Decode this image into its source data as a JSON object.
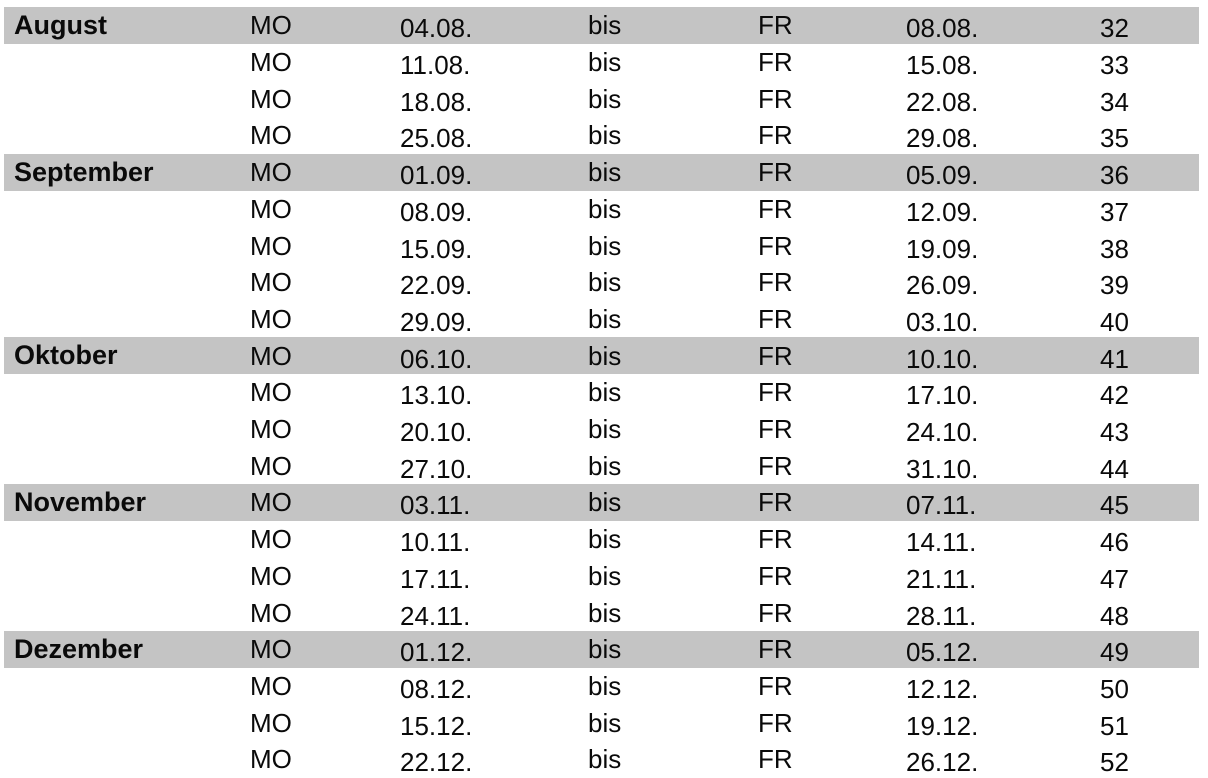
{
  "table": {
    "description_labels": {
      "start_day": "MO",
      "connector": "bis",
      "end_day": "FR"
    },
    "month_row_background": "#c4c4c4",
    "text_color": "#0a0a0a",
    "rows": [
      {
        "month": "August",
        "month_start": true,
        "start_day": "MO",
        "start_date": "04.08.",
        "connector": "bis",
        "end_day": "FR",
        "end_date": "08.08.",
        "week": "32"
      },
      {
        "month": "",
        "month_start": false,
        "start_day": "MO",
        "start_date": "11.08.",
        "connector": "bis",
        "end_day": "FR",
        "end_date": "15.08.",
        "week": "33"
      },
      {
        "month": "",
        "month_start": false,
        "start_day": "MO",
        "start_date": "18.08.",
        "connector": "bis",
        "end_day": "FR",
        "end_date": "22.08.",
        "week": "34"
      },
      {
        "month": "",
        "month_start": false,
        "start_day": "MO",
        "start_date": "25.08.",
        "connector": "bis",
        "end_day": "FR",
        "end_date": "29.08.",
        "week": "35"
      },
      {
        "month": "September",
        "month_start": true,
        "start_day": "MO",
        "start_date": "01.09.",
        "connector": "bis",
        "end_day": "FR",
        "end_date": "05.09.",
        "week": "36"
      },
      {
        "month": "",
        "month_start": false,
        "start_day": "MO",
        "start_date": "08.09.",
        "connector": "bis",
        "end_day": "FR",
        "end_date": "12.09.",
        "week": "37"
      },
      {
        "month": "",
        "month_start": false,
        "start_day": "MO",
        "start_date": "15.09.",
        "connector": "bis",
        "end_day": "FR",
        "end_date": "19.09.",
        "week": "38"
      },
      {
        "month": "",
        "month_start": false,
        "start_day": "MO",
        "start_date": "22.09.",
        "connector": "bis",
        "end_day": "FR",
        "end_date": "26.09.",
        "week": "39"
      },
      {
        "month": "",
        "month_start": false,
        "start_day": "MO",
        "start_date": "29.09.",
        "connector": "bis",
        "end_day": "FR",
        "end_date": "03.10.",
        "week": "40"
      },
      {
        "month": "Oktober",
        "month_start": true,
        "start_day": "MO",
        "start_date": "06.10.",
        "connector": "bis",
        "end_day": "FR",
        "end_date": "10.10.",
        "week": "41"
      },
      {
        "month": "",
        "month_start": false,
        "start_day": "MO",
        "start_date": "13.10.",
        "connector": "bis",
        "end_day": "FR",
        "end_date": "17.10.",
        "week": "42"
      },
      {
        "month": "",
        "month_start": false,
        "start_day": "MO",
        "start_date": "20.10.",
        "connector": "bis",
        "end_day": "FR",
        "end_date": "24.10.",
        "week": "43"
      },
      {
        "month": "",
        "month_start": false,
        "start_day": "MO",
        "start_date": "27.10.",
        "connector": "bis",
        "end_day": "FR",
        "end_date": "31.10.",
        "week": "44"
      },
      {
        "month": "November",
        "month_start": true,
        "start_day": "MO",
        "start_date": "03.11.",
        "connector": "bis",
        "end_day": "FR",
        "end_date": "07.11.",
        "week": "45"
      },
      {
        "month": "",
        "month_start": false,
        "start_day": "MO",
        "start_date": "10.11.",
        "connector": "bis",
        "end_day": "FR",
        "end_date": "14.11.",
        "week": "46"
      },
      {
        "month": "",
        "month_start": false,
        "start_day": "MO",
        "start_date": "17.11.",
        "connector": "bis",
        "end_day": "FR",
        "end_date": "21.11.",
        "week": "47"
      },
      {
        "month": "",
        "month_start": false,
        "start_day": "MO",
        "start_date": "24.11.",
        "connector": "bis",
        "end_day": "FR",
        "end_date": "28.11.",
        "week": "48"
      },
      {
        "month": "Dezember",
        "month_start": true,
        "start_day": "MO",
        "start_date": "01.12.",
        "connector": "bis",
        "end_day": "FR",
        "end_date": "05.12.",
        "week": "49"
      },
      {
        "month": "",
        "month_start": false,
        "start_day": "MO",
        "start_date": "08.12.",
        "connector": "bis",
        "end_day": "FR",
        "end_date": "12.12.",
        "week": "50"
      },
      {
        "month": "",
        "month_start": false,
        "start_day": "MO",
        "start_date": "15.12.",
        "connector": "bis",
        "end_day": "FR",
        "end_date": "19.12.",
        "week": "51"
      },
      {
        "month": "",
        "month_start": false,
        "start_day": "MO",
        "start_date": "22.12.",
        "connector": "bis",
        "end_day": "FR",
        "end_date": "26.12.",
        "week": "52"
      }
    ]
  }
}
